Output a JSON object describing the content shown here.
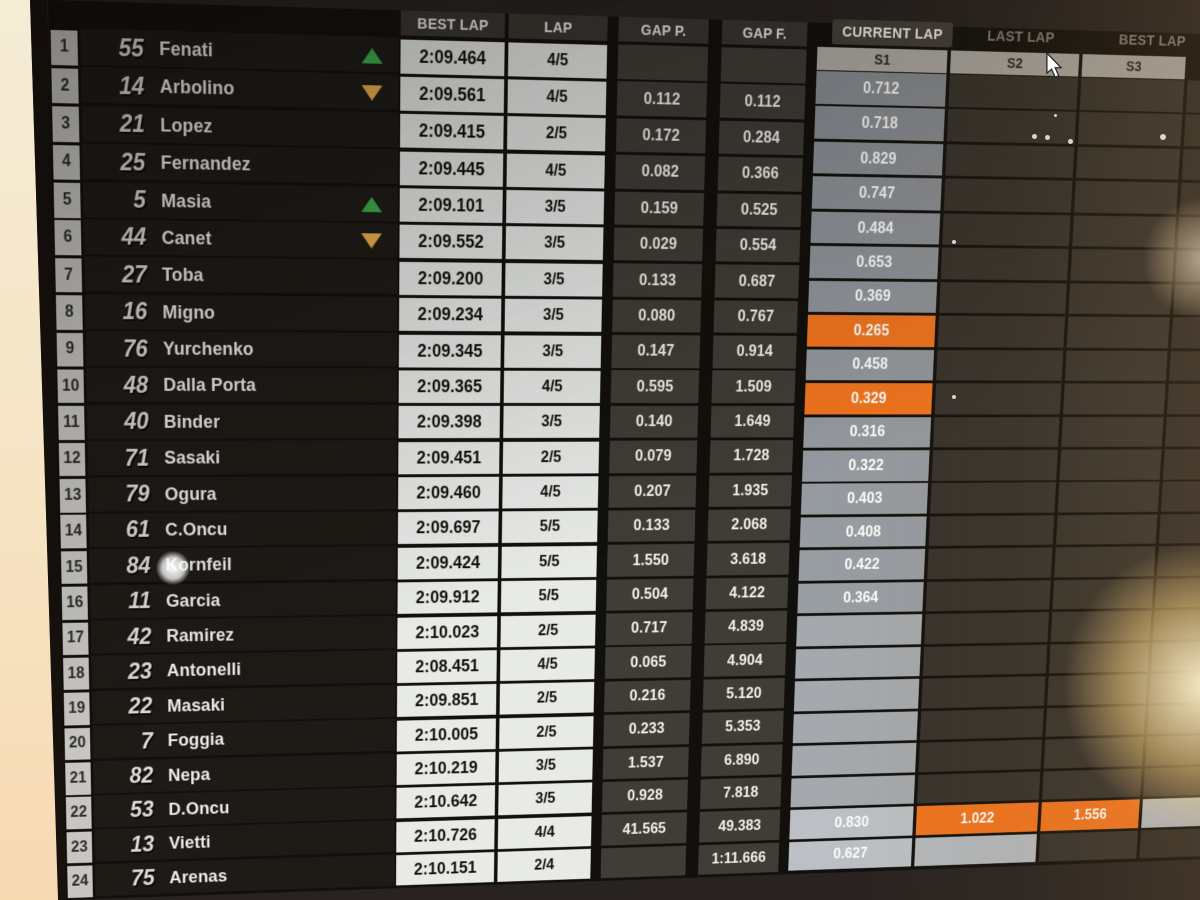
{
  "columns": {
    "best_lap": "BEST LAP",
    "lap": "LAP",
    "gap_p": "GAP P.",
    "gap_f": "GAP F."
  },
  "tabs": [
    {
      "label": "CURRENT LAP",
      "selected": true
    },
    {
      "label": "LAST LAP",
      "selected": false
    },
    {
      "label": "BEST LAP",
      "selected": false
    }
  ],
  "sectors": [
    "S1",
    "S2",
    "S3"
  ],
  "colors": {
    "orange_highlight": "#F0741F",
    "green_arrow": "#3FAE4D",
    "amber_arrow": "#EEB14D",
    "light_cell": "#E8EAE8",
    "dark_cell": "#36322C",
    "sector_gray": "#8A8F95",
    "sector_light": "#BCC0C5"
  },
  "icons": {
    "cursor": "mouse-pointer",
    "up": "triangle-up-icon",
    "down": "triangle-down-icon"
  },
  "rows": [
    {
      "pos": "1",
      "num": "55",
      "name": "Fenati",
      "arrow": "up",
      "best": "2:09.464",
      "lap": "4/5",
      "gap_p": "",
      "gap_f": "",
      "s1": "0.712"
    },
    {
      "pos": "2",
      "num": "14",
      "name": "Arbolino",
      "arrow": "down",
      "best": "2:09.561",
      "lap": "4/5",
      "gap_p": "0.112",
      "gap_f": "0.112",
      "s1": "0.718"
    },
    {
      "pos": "3",
      "num": "21",
      "name": "Lopez",
      "arrow": "",
      "best": "2:09.415",
      "lap": "2/5",
      "gap_p": "0.172",
      "gap_f": "0.284",
      "s1": "0.829"
    },
    {
      "pos": "4",
      "num": "25",
      "name": "Fernandez",
      "arrow": "",
      "best": "2:09.445",
      "lap": "4/5",
      "gap_p": "0.082",
      "gap_f": "0.366",
      "s1": "0.747"
    },
    {
      "pos": "5",
      "num": "5",
      "name": "Masia",
      "arrow": "up",
      "best": "2:09.101",
      "lap": "3/5",
      "gap_p": "0.159",
      "gap_f": "0.525",
      "s1": "0.484"
    },
    {
      "pos": "6",
      "num": "44",
      "name": "Canet",
      "arrow": "down",
      "best": "2:09.552",
      "lap": "3/5",
      "gap_p": "0.029",
      "gap_f": "0.554",
      "s1": "0.653"
    },
    {
      "pos": "7",
      "num": "27",
      "name": "Toba",
      "arrow": "",
      "best": "2:09.200",
      "lap": "3/5",
      "gap_p": "0.133",
      "gap_f": "0.687",
      "s1": "0.369"
    },
    {
      "pos": "8",
      "num": "16",
      "name": "Migno",
      "arrow": "",
      "best": "2:09.234",
      "lap": "3/5",
      "gap_p": "0.080",
      "gap_f": "0.767",
      "s1": "0.265",
      "s1_orange": true
    },
    {
      "pos": "9",
      "num": "76",
      "name": "Yurchenko",
      "arrow": "",
      "best": "2:09.345",
      "lap": "3/5",
      "gap_p": "0.147",
      "gap_f": "0.914",
      "s1": "0.458"
    },
    {
      "pos": "10",
      "num": "48",
      "name": "Dalla Porta",
      "arrow": "",
      "best": "2:09.365",
      "lap": "4/5",
      "gap_p": "0.595",
      "gap_f": "1.509",
      "s1": "0.329",
      "s1_orange": true
    },
    {
      "pos": "11",
      "num": "40",
      "name": "Binder",
      "arrow": "",
      "best": "2:09.398",
      "lap": "3/5",
      "gap_p": "0.140",
      "gap_f": "1.649",
      "s1": "0.316"
    },
    {
      "pos": "12",
      "num": "71",
      "name": "Sasaki",
      "arrow": "",
      "best": "2:09.451",
      "lap": "2/5",
      "gap_p": "0.079",
      "gap_f": "1.728",
      "s1": "0.322"
    },
    {
      "pos": "13",
      "num": "79",
      "name": "Ogura",
      "arrow": "",
      "best": "2:09.460",
      "lap": "4/5",
      "gap_p": "0.207",
      "gap_f": "1.935",
      "s1": "0.403"
    },
    {
      "pos": "14",
      "num": "61",
      "name": "C.Oncu",
      "arrow": "",
      "best": "2:09.697",
      "lap": "5/5",
      "gap_p": "0.133",
      "gap_f": "2.068",
      "s1": "0.408"
    },
    {
      "pos": "15",
      "num": "84",
      "name": "Kornfeil",
      "arrow": "",
      "best": "2:09.424",
      "lap": "5/5",
      "gap_p": "1.550",
      "gap_f": "3.618",
      "s1": "0.422"
    },
    {
      "pos": "16",
      "num": "11",
      "name": "Garcia",
      "arrow": "",
      "best": "2:09.912",
      "lap": "5/5",
      "gap_p": "0.504",
      "gap_f": "4.122",
      "s1": "0.364"
    },
    {
      "pos": "17",
      "num": "42",
      "name": "Ramirez",
      "arrow": "",
      "best": "2:10.023",
      "lap": "2/5",
      "gap_p": "0.717",
      "gap_f": "4.839",
      "s1": ""
    },
    {
      "pos": "18",
      "num": "23",
      "name": "Antonelli",
      "arrow": "",
      "best": "2:08.451",
      "lap": "4/5",
      "gap_p": "0.065",
      "gap_f": "4.904",
      "s1": ""
    },
    {
      "pos": "19",
      "num": "22",
      "name": "Masaki",
      "arrow": "",
      "best": "2:09.851",
      "lap": "2/5",
      "gap_p": "0.216",
      "gap_f": "5.120",
      "s1": ""
    },
    {
      "pos": "20",
      "num": "7",
      "name": "Foggia",
      "arrow": "",
      "best": "2:10.005",
      "lap": "2/5",
      "gap_p": "0.233",
      "gap_f": "5.353",
      "s1": ""
    },
    {
      "pos": "21",
      "num": "82",
      "name": "Nepa",
      "arrow": "",
      "best": "2:10.219",
      "lap": "3/5",
      "gap_p": "1.537",
      "gap_f": "6.890",
      "s1": ""
    },
    {
      "pos": "22",
      "num": "53",
      "name": "D.Oncu",
      "arrow": "",
      "best": "2:10.642",
      "lap": "3/5",
      "gap_p": "0.928",
      "gap_f": "7.818",
      "s1": ""
    },
    {
      "pos": "23",
      "num": "13",
      "name": "Vietti",
      "arrow": "",
      "best": "2:10.726",
      "lap": "4/4",
      "gap_p": "41.565",
      "gap_f": "49.383",
      "s1": "0.830",
      "s1_light": true,
      "s2": "1.022",
      "s2_orange": true,
      "s3": "1.556",
      "s3_orange": true,
      "s4_light": true
    },
    {
      "pos": "24",
      "num": "75",
      "name": "Arenas",
      "arrow": "",
      "best": "2:10.151",
      "lap": "2/4",
      "gap_p": "",
      "gap_f": "1:11.666",
      "s1": "0.627",
      "s1_light": true,
      "s2": "",
      "s2_light": true
    }
  ]
}
